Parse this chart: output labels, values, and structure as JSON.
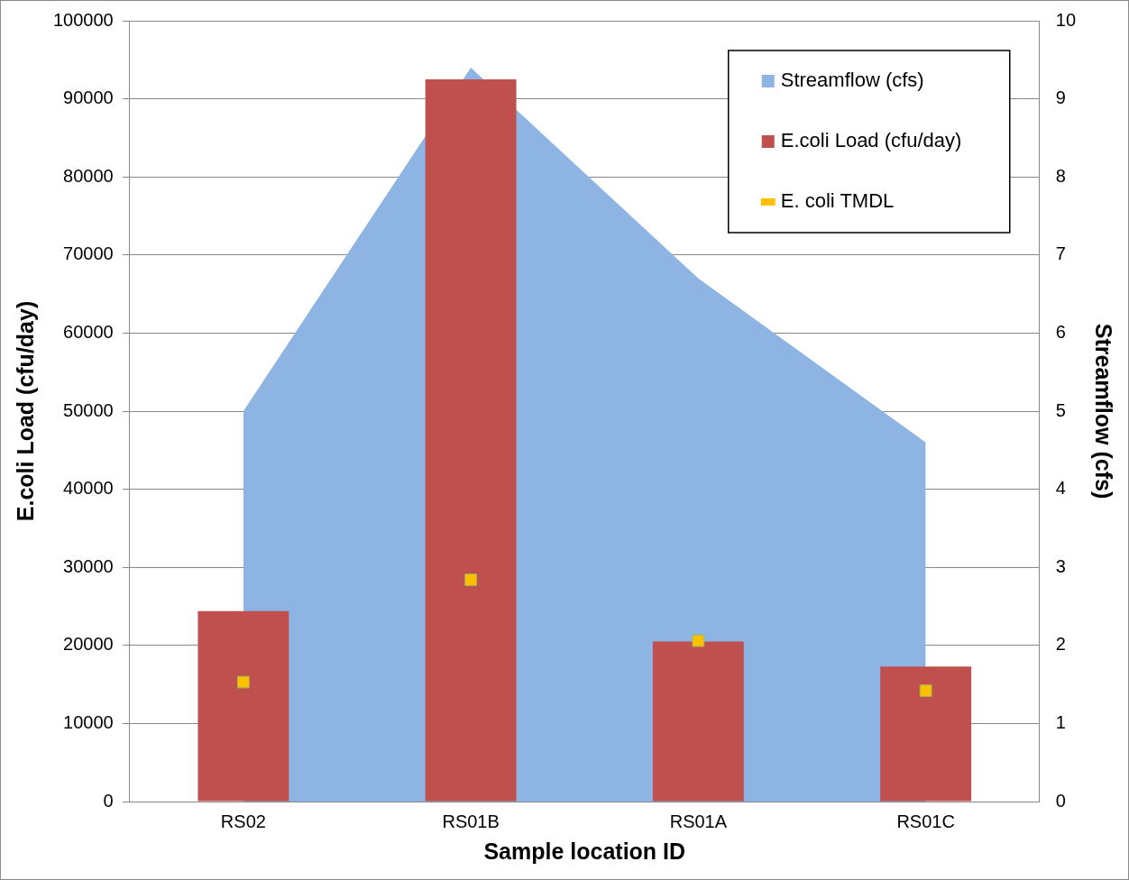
{
  "chart_data": {
    "type": "bar",
    "xlabel": "Sample location ID",
    "ylabel": "E.coli Load (cfu/day)",
    "y2label": "Streamflow (cfs)",
    "categories": [
      "RS02",
      "RS01B",
      "RS01A",
      "RS01C"
    ],
    "series": [
      {
        "name": "Streamflow (cfs)",
        "type": "area",
        "axis": "y2",
        "color": "#8eb4e3",
        "values": [
          5.0,
          9.4,
          6.7,
          4.6
        ]
      },
      {
        "name": "E.coli Load (cfu/day)",
        "color": "#c0504d",
        "values": [
          24400,
          92500,
          20500,
          17300
        ]
      },
      {
        "name": "E. coli TMDL",
        "type": "scatter",
        "color": "#ffc000",
        "x": [
          "RS02",
          "RS01B",
          "RS01A",
          "RS01C"
        ],
        "values": [
          15300,
          28400,
          20600,
          14200
        ]
      }
    ],
    "ylim": [
      0,
      100000
    ],
    "yticks": [
      0,
      10000,
      20000,
      30000,
      40000,
      50000,
      60000,
      70000,
      80000,
      90000,
      100000
    ],
    "y2lim": [
      0,
      10
    ],
    "y2ticks": [
      0,
      1,
      2,
      3,
      4,
      5,
      6,
      7,
      8,
      9,
      10
    ],
    "grid": "y",
    "legend": "top right"
  }
}
